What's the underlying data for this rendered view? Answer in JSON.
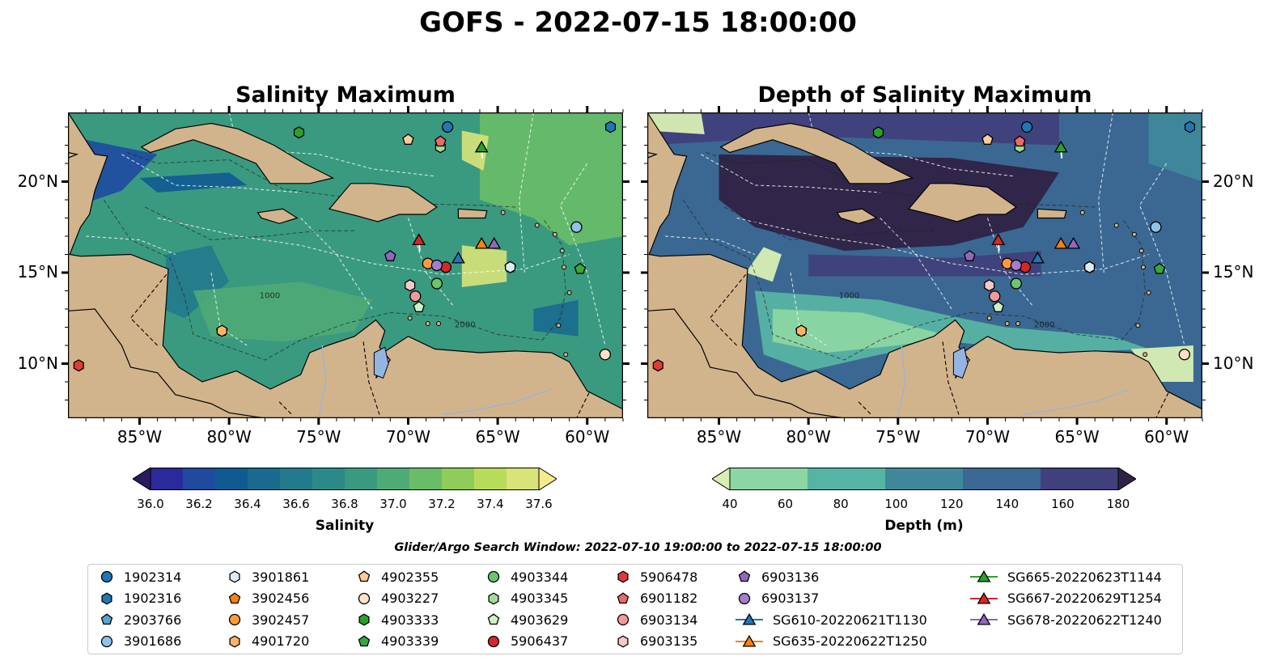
{
  "title": "GOFS - 2022-07-15 18:00:00",
  "panels": [
    {
      "title": "Salinity Maximum",
      "colorbar": {
        "label": "Salinity",
        "ticks": [
          "36.0",
          "36.2",
          "36.4",
          "36.6",
          "36.8",
          "37.0",
          "37.2",
          "37.4",
          "37.6"
        ],
        "colors": [
          "#2a1a5e",
          "#2a2a9a",
          "#1f4aa0",
          "#105a92",
          "#1a6a8e",
          "#237a8c",
          "#2b8a88",
          "#3a9a80",
          "#4fab76",
          "#6abd68",
          "#8fcc5a",
          "#b8dc5a",
          "#d8e478",
          "#f2ec8c"
        ],
        "extend": "both"
      }
    },
    {
      "title": "Depth of Salinity Maximum",
      "colorbar": {
        "label": "Depth (m)",
        "ticks": [
          "40",
          "60",
          "80",
          "100",
          "120",
          "140",
          "160",
          "180"
        ],
        "colors": [
          "#d8efb4",
          "#8bd6a2",
          "#56b4a4",
          "#3f889c",
          "#3a6892",
          "#40407c",
          "#2e2346"
        ],
        "extend": "both"
      }
    }
  ],
  "axes": {
    "lon_ticks": [
      "85°W",
      "80°W",
      "75°W",
      "70°W",
      "65°W",
      "60°W"
    ],
    "lat_ticks": [
      "20°N",
      "15°N",
      "10°N"
    ],
    "lon_range": [
      -89,
      -58
    ],
    "lat_range": [
      7,
      23.8
    ]
  },
  "contour_labels": [
    "1000",
    "2000"
  ],
  "search_window": "Glider/Argo Search Window: 2022-07-10 19:00:00 to 2022-07-15 18:00:00",
  "legend": [
    {
      "label": "1902314",
      "marker": "circle",
      "color": "#1f77b4"
    },
    {
      "label": "1902316",
      "marker": "hexagon",
      "color": "#1f77b4"
    },
    {
      "label": "2903766",
      "marker": "pentagon",
      "color": "#5aa0d2"
    },
    {
      "label": "3901686",
      "marker": "circle",
      "color": "#8ec4ec"
    },
    {
      "label": "3901861",
      "marker": "hexagon",
      "color": "#dcecf8"
    },
    {
      "label": "3902456",
      "marker": "pentagon",
      "color": "#ff7f0e"
    },
    {
      "label": "3902457",
      "marker": "circle",
      "color": "#ff9a3c"
    },
    {
      "label": "4901720",
      "marker": "hexagon",
      "color": "#ffb366"
    },
    {
      "label": "4902355",
      "marker": "pentagon",
      "color": "#ffcc99"
    },
    {
      "label": "4903227",
      "marker": "circle",
      "color": "#ffe2c8"
    },
    {
      "label": "4903333",
      "marker": "hexagon",
      "color": "#2ca02c"
    },
    {
      "label": "4903339",
      "marker": "pentagon",
      "color": "#36a836"
    },
    {
      "label": "4903344",
      "marker": "circle",
      "color": "#6cc66c"
    },
    {
      "label": "4903345",
      "marker": "hexagon",
      "color": "#a0dc96"
    },
    {
      "label": "4903629",
      "marker": "pentagon",
      "color": "#cff0c6"
    },
    {
      "label": "5906437",
      "marker": "circle",
      "color": "#d62728"
    },
    {
      "label": "5906478",
      "marker": "hexagon",
      "color": "#e03a3a"
    },
    {
      "label": "6901182",
      "marker": "pentagon",
      "color": "#ea6a6c"
    },
    {
      "label": "6903134",
      "marker": "circle",
      "color": "#f29a9a"
    },
    {
      "label": "6903135",
      "marker": "hexagon",
      "color": "#f8c8c6"
    },
    {
      "label": "6903136",
      "marker": "pentagon",
      "color": "#9467bd"
    },
    {
      "label": "6903137",
      "marker": "circle",
      "color": "#a57dcc"
    },
    {
      "label": "SG610-20220621T1130",
      "marker": "triangle",
      "color": "#1f77b4",
      "line": true
    },
    {
      "label": "SG635-20220622T1250",
      "marker": "triangle",
      "color": "#ff7f0e",
      "line": true
    },
    {
      "label": "SG665-20220623T1144",
      "marker": "triangle",
      "color": "#2ca02c",
      "line": true
    },
    {
      "label": "SG667-20220629T1254",
      "marker": "triangle",
      "color": "#d62728",
      "line": true
    },
    {
      "label": "SG678-20220622T1240",
      "marker": "triangle",
      "color": "#9467bd",
      "line": true
    }
  ],
  "positions": [
    {
      "id": "1902314",
      "lon": -67.8,
      "lat": 23.0
    },
    {
      "id": "1902316",
      "lon": -58.7,
      "lat": 23.0
    },
    {
      "id": "2903766",
      "lon": -64.3,
      "lat": 15.3
    },
    {
      "id": "3901686",
      "lon": -60.6,
      "lat": 17.5
    },
    {
      "id": "3901861",
      "lon": -64.3,
      "lat": 15.3
    },
    {
      "id": "3902456",
      "lon": -80.4,
      "lat": 11.8
    },
    {
      "id": "3902457",
      "lon": -68.9,
      "lat": 15.5
    },
    {
      "id": "4901720",
      "lon": -80.4,
      "lat": 11.8
    },
    {
      "id": "4902355",
      "lon": -70.0,
      "lat": 22.3
    },
    {
      "id": "4903227",
      "lon": -59.0,
      "lat": 10.5
    },
    {
      "id": "4903333",
      "lon": -76.1,
      "lat": 22.7
    },
    {
      "id": "4903339",
      "lon": -60.4,
      "lat": 15.2
    },
    {
      "id": "4903344",
      "lon": -68.4,
      "lat": 14.4
    },
    {
      "id": "4903345",
      "lon": -68.2,
      "lat": 21.9
    },
    {
      "id": "4903629",
      "lon": -69.4,
      "lat": 13.1
    },
    {
      "id": "5906437",
      "lon": -67.9,
      "lat": 15.3
    },
    {
      "id": "5906478",
      "lon": -88.4,
      "lat": 9.9
    },
    {
      "id": "6901182",
      "lon": -68.2,
      "lat": 22.2
    },
    {
      "id": "6903134",
      "lon": -69.6,
      "lat": 13.7
    },
    {
      "id": "6903135",
      "lon": -69.9,
      "lat": 14.3
    },
    {
      "id": "6903136",
      "lon": -71.0,
      "lat": 15.9
    },
    {
      "id": "6903137",
      "lon": -68.4,
      "lat": 15.4
    },
    {
      "id": "SG610-20220621T1130",
      "lon": -67.2,
      "lat": 15.8
    },
    {
      "id": "SG635-20220622T1250",
      "lon": -65.9,
      "lat": 16.6
    },
    {
      "id": "SG665-20220623T1144",
      "lon": -65.9,
      "lat": 21.9
    },
    {
      "id": "SG667-20220629T1254",
      "lon": -69.4,
      "lat": 16.8
    },
    {
      "id": "SG678-20220622T1240",
      "lon": -65.2,
      "lat": 16.6
    }
  ]
}
